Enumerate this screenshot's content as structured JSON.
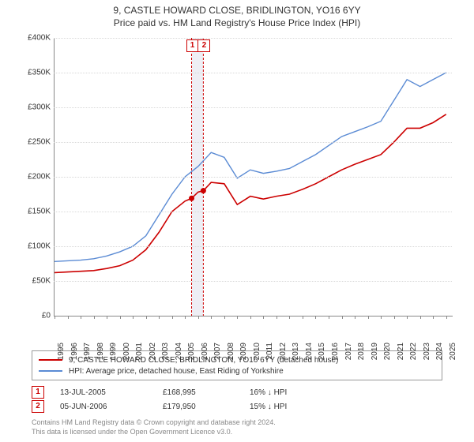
{
  "title": "9, CASTLE HOWARD CLOSE, BRIDLINGTON, YO16 6YY",
  "subtitle": "Price paid vs. HM Land Registry's House Price Index (HPI)",
  "chart": {
    "type": "line",
    "background_color": "#ffffff",
    "grid_color": "#d8d8d8",
    "axis_color": "#888888",
    "label_color": "#333333",
    "label_fontsize": 10,
    "xlim": [
      1995,
      2025.5
    ],
    "ylim": [
      0,
      400000
    ],
    "ytick_step": 50000,
    "yticks": [
      "£0",
      "£50K",
      "£100K",
      "£150K",
      "£200K",
      "£250K",
      "£300K",
      "£350K",
      "£400K"
    ],
    "xticks": [
      1995,
      1996,
      1997,
      1998,
      1999,
      2000,
      2001,
      2002,
      2003,
      2004,
      2005,
      2006,
      2007,
      2008,
      2009,
      2010,
      2011,
      2012,
      2013,
      2014,
      2015,
      2016,
      2017,
      2018,
      2019,
      2020,
      2021,
      2022,
      2023,
      2024,
      2025
    ],
    "series": [
      {
        "name": "price_paid",
        "label": "9, CASTLE HOWARD CLOSE, BRIDLINGTON, YO16 6YY (detached house)",
        "color": "#cc0000",
        "line_width": 1.6,
        "x": [
          1995,
          1996,
          1997,
          1998,
          1999,
          2000,
          2001,
          2002,
          2003,
          2004,
          2005,
          2005.5,
          2006,
          2006.4,
          2007,
          2008,
          2009,
          2010,
          2011,
          2012,
          2013,
          2014,
          2015,
          2016,
          2017,
          2018,
          2019,
          2020,
          2021,
          2022,
          2023,
          2024,
          2025
        ],
        "y": [
          62000,
          63000,
          64000,
          65000,
          68000,
          72000,
          80000,
          95000,
          120000,
          150000,
          165000,
          168995,
          178000,
          179950,
          192000,
          190000,
          160000,
          172000,
          168000,
          172000,
          175000,
          182000,
          190000,
          200000,
          210000,
          218000,
          225000,
          232000,
          250000,
          270000,
          270000,
          278000,
          290000
        ]
      },
      {
        "name": "hpi",
        "label": "HPI: Average price, detached house, East Riding of Yorkshire",
        "color": "#5b8bd4",
        "line_width": 1.4,
        "x": [
          1995,
          1996,
          1997,
          1998,
          1999,
          2000,
          2001,
          2002,
          2003,
          2004,
          2005,
          2006,
          2007,
          2008,
          2009,
          2010,
          2011,
          2012,
          2013,
          2014,
          2015,
          2016,
          2017,
          2018,
          2019,
          2020,
          2021,
          2022,
          2023,
          2024,
          2025
        ],
        "y": [
          78000,
          79000,
          80000,
          82000,
          86000,
          92000,
          100000,
          115000,
          145000,
          175000,
          200000,
          215000,
          235000,
          228000,
          198000,
          210000,
          205000,
          208000,
          212000,
          222000,
          232000,
          245000,
          258000,
          265000,
          272000,
          280000,
          310000,
          340000,
          330000,
          340000,
          350000
        ]
      }
    ],
    "markers": [
      {
        "id": "1",
        "x": 2005.5,
        "color": "#cc0000",
        "band_color": "#f0e8e8",
        "point_y": 168995
      },
      {
        "id": "2",
        "x": 2006.4,
        "color": "#cc0000",
        "band_color": "#e8e8f0",
        "point_y": 179950
      }
    ],
    "band_background": "#eeeef4",
    "point_radius": 3.5
  },
  "legend": {
    "border_color": "#999999",
    "items": [
      {
        "color": "#cc0000",
        "label": "9, CASTLE HOWARD CLOSE, BRIDLINGTON, YO16 6YY (detached house)"
      },
      {
        "color": "#5b8bd4",
        "label": "HPI: Average price, detached house, East Riding of Yorkshire"
      }
    ]
  },
  "transactions": [
    {
      "marker": "1",
      "marker_color": "#cc0000",
      "date": "13-JUL-2005",
      "price": "£168,995",
      "diff": "16% ↓ HPI"
    },
    {
      "marker": "2",
      "marker_color": "#cc0000",
      "date": "05-JUN-2006",
      "price": "£179,950",
      "diff": "15% ↓ HPI"
    }
  ],
  "footer": {
    "line1": "Contains HM Land Registry data © Crown copyright and database right 2024.",
    "line2": "This data is licensed under the Open Government Licence v3.0.",
    "color": "#888888"
  }
}
